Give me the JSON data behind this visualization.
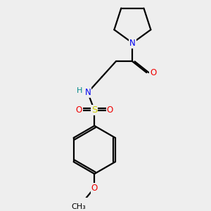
{
  "bg_color": "#eeeeee",
  "line_color": "#000000",
  "bond_width": 1.6,
  "font_size_atoms": 8.5,
  "colors": {
    "N": "#0000ee",
    "O": "#ee0000",
    "S": "#cccc00",
    "H": "#008888",
    "C": "#000000"
  }
}
